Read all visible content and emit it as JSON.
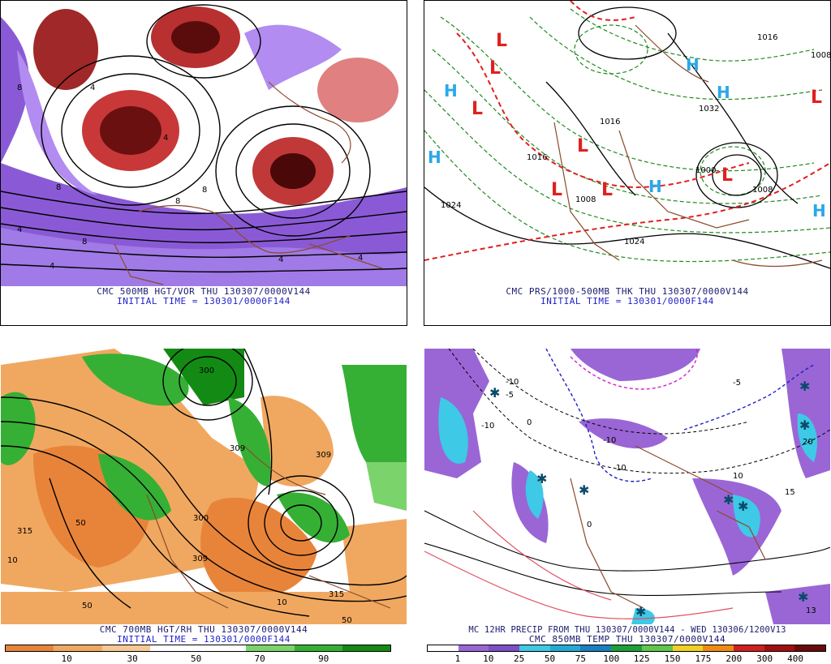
{
  "panels": {
    "top_left": {
      "caption": "CMC 500MB HGT/VOR THU 130307/0000V144",
      "subcaption": "INITIAL TIME = 130301/0000F144",
      "labels": [
        "4",
        "8",
        "8",
        "4",
        "8",
        "8",
        "4",
        "4",
        "4",
        "8",
        "4"
      ]
    },
    "top_right": {
      "caption": "CMC PRS/1000-500MB THK THU 130307/0000V144",
      "subcaption": "INITIAL TIME = 130301/0000F144",
      "pressure_labels": [
        "1024",
        "1032",
        "1024",
        "1008",
        "1008",
        "1016",
        "1016",
        "1016",
        "1000",
        "1008"
      ],
      "lows": [
        "L",
        "L",
        "L",
        "L",
        "L",
        "L",
        "L",
        "L"
      ],
      "highs": [
        "H",
        "H",
        "H",
        "H",
        "H",
        "H"
      ]
    },
    "bottom_left": {
      "caption": "CMC 700MB HGT/RH THU 130307/0000V144",
      "subcaption": "INITIAL TIME = 130301/0000F144",
      "labels": [
        "315",
        "300",
        "309",
        "309",
        "315",
        "10",
        "50",
        "50",
        "10",
        "50",
        "309",
        "300"
      ],
      "colorbar": {
        "colors": [
          "#e8843a",
          "#f0a860",
          "#f5c896",
          "#ffffff",
          "#ffffff",
          "#7bd36b",
          "#35b035",
          "#138a13"
        ],
        "ticks": [
          "10",
          "30",
          "50",
          "70",
          "90"
        ]
      }
    },
    "bottom_right": {
      "caption": "MC 12HR PRECIP FROM THU 130307/0000V144 - WED 130306/1200V13",
      "subcaption": "CMC 850MB TEMP THU 130307/0000V144",
      "labels": [
        "-10",
        "-10",
        "10",
        "-10",
        "0",
        "-5",
        "10",
        "20",
        "15",
        "-5",
        "0",
        "13"
      ],
      "colorbar": {
        "colors": [
          "#ffffff",
          "#9a66d6",
          "#7d4fc8",
          "#3ec9e6",
          "#24a8d6",
          "#1a7fc0",
          "#1f9e3a",
          "#5fc74a",
          "#f0d020",
          "#f08a10",
          "#d02020",
          "#a01010",
          "#6a0a0a"
        ],
        "ticks": [
          "1",
          "10",
          "25",
          "50",
          "75",
          "100",
          "125",
          "150",
          "175",
          "200",
          "300",
          "400"
        ]
      }
    }
  },
  "icons": {
    "low": "low-pressure-marker",
    "high": "high-pressure-marker",
    "snow": "snow-asterisk-icon"
  }
}
